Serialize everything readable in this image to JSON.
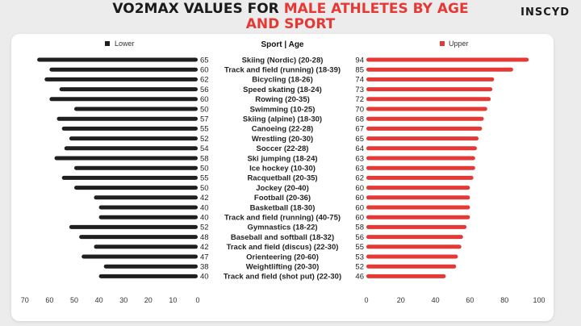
{
  "header": {
    "title_part1": "VO2MAX VALUES FOR ",
    "title_highlight": "MALE ATHLETES BY AGE",
    "title_line2": "AND SPORT",
    "logo": "INSCYD"
  },
  "colors": {
    "lower": "#1f1f1f",
    "upper": "#e53935",
    "background": "#ececec",
    "panel": "#ffffff"
  },
  "chart_data": {
    "type": "bar",
    "orientation": "horizontal-butterfly",
    "category_header": "Sport | Age",
    "categories": [
      "Skiing (Nordic) (20-28)",
      "Track and field (running) (18-39)",
      "Bicycling (18-26)",
      "Speed skating (18-24)",
      "Rowing (20-35)",
      "Swimming (10-25)",
      "Skiing (alpine) (18-30)",
      "Canoeing (22-28)",
      "Wrestling (20-30)",
      "Soccer (22-28)",
      "Ski jumping (18-24)",
      "Ice hockey (10-30)",
      "Racquetball (20-35)",
      "Jockey (20-40)",
      "Football (20-36)",
      "Basketball (18-30)",
      "Track and field (running) (40-75)",
      "Gymnastics (18-22)",
      "Baseball and softball (18-32)",
      "Track and field (discus) (22-30)",
      "Orienteering (20-60)",
      "Weightlifting (20-30)",
      "Track and field (shot put) (22-30)"
    ],
    "series": [
      {
        "name": "Lower",
        "values": [
          65,
          60,
          62,
          56,
          60,
          50,
          57,
          55,
          52,
          54,
          58,
          50,
          55,
          50,
          42,
          40,
          40,
          52,
          48,
          42,
          47,
          38,
          40
        ]
      },
      {
        "name": "Upper",
        "values": [
          94,
          85,
          74,
          73,
          72,
          70,
          68,
          67,
          65,
          64,
          63,
          63,
          62,
          60,
          60,
          60,
          60,
          58,
          56,
          55,
          53,
          52,
          46
        ]
      }
    ],
    "left_axis": {
      "ticks": [
        70,
        60,
        50,
        40,
        30,
        20,
        10,
        0
      ],
      "range": [
        0,
        70
      ],
      "reversed": true
    },
    "right_axis": {
      "ticks": [
        0,
        20,
        40,
        60,
        80,
        100
      ],
      "range": [
        0,
        100
      ]
    },
    "legend_position": "top"
  }
}
